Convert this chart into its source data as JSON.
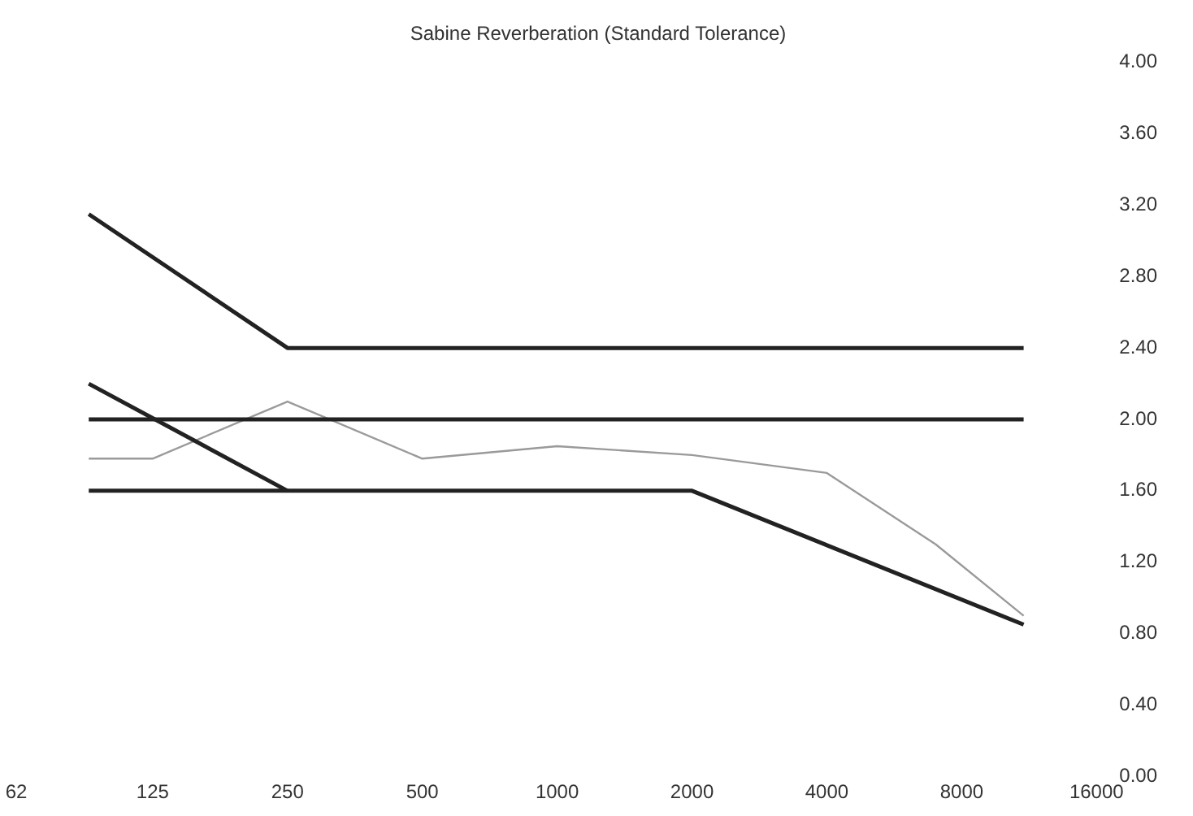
{
  "chart_data": {
    "type": "line",
    "title": "Sabine Reverberation (Standard Tolerance)",
    "xlim": [
      62,
      16000
    ],
    "xticks": [
      62,
      125,
      250,
      500,
      1000,
      2000,
      4000,
      8000,
      16000
    ],
    "log": "x",
    "ylim": [
      0,
      4
    ],
    "yticks": [
      {
        "value": 0,
        "label": "0.00"
      },
      {
        "value": 0.4,
        "label": "0.40"
      },
      {
        "value": 0.8,
        "label": "0.80"
      },
      {
        "value": 1.2,
        "label": "1.20"
      },
      {
        "value": 1.6,
        "label": "1.60"
      },
      {
        "value": 2,
        "label": "2.00"
      },
      {
        "value": 2.4,
        "label": "2.40"
      },
      {
        "value": 2.8,
        "label": "2.80"
      },
      {
        "value": 3.2,
        "label": "3.20"
      },
      {
        "value": 3.6,
        "label": "3.60"
      },
      {
        "value": 4,
        "label": "4.00"
      }
    ],
    "grid": false,
    "legend": false,
    "marker": "none",
    "line_style": "solid",
    "series": [
      {
        "color": "#222222",
        "x": [
          90,
          250,
          11000
        ],
        "values": [
          3.15,
          2.4,
          2.4
        ]
      },
      {
        "color": "#222222",
        "x": [
          90,
          11000
        ],
        "values": [
          2.0,
          2.0
        ]
      },
      {
        "color": "#222222",
        "x": [
          90,
          250
        ],
        "values": [
          2.2,
          1.6
        ]
      },
      {
        "color": "#222222",
        "x": [
          90,
          2000,
          11000
        ],
        "values": [
          1.6,
          1.6,
          0.85
        ]
      },
      {
        "color": "#9a9a9a",
        "x": [
          90,
          125,
          250,
          500,
          1000,
          2000,
          4000,
          7000,
          11000
        ],
        "values": [
          1.78,
          1.78,
          2.1,
          1.78,
          1.85,
          1.8,
          1.7,
          1.3,
          0.9
        ]
      }
    ]
  }
}
